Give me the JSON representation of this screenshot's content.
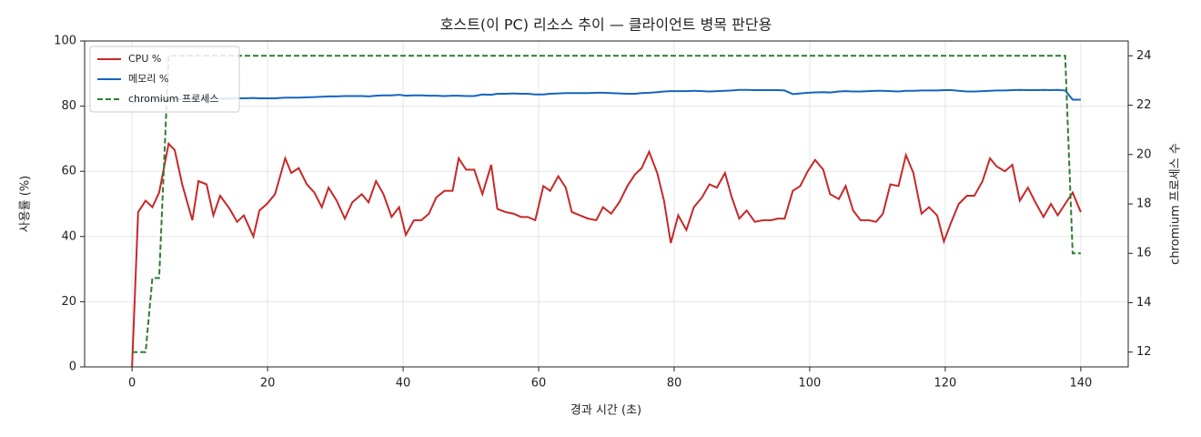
{
  "chart_data": {
    "type": "line",
    "title": "호스트(이 PC) 리소스 추이 — 클라이언트 병목 판단용",
    "x_label": "경과 시간 (초)",
    "y_label": "사용률 (%)",
    "y2_label": "chromium 프로세스 수",
    "x": [
      0,
      0.9,
      2,
      3,
      4,
      5.4,
      6.3,
      7.4,
      8.9,
      9.8,
      11,
      12,
      13,
      14.4,
      15.5,
      16.5,
      17.9,
      18.8,
      19.9,
      21.1,
      22.6,
      23.5,
      24.6,
      25.8,
      26.9,
      28,
      29,
      30.2,
      31.4,
      32.5,
      33.9,
      34.9,
      36,
      37.1,
      38.3,
      39.4,
      40.4,
      41.6,
      42.7,
      43.8,
      44.9,
      46.1,
      47.3,
      48.2,
      49.3,
      50.5,
      51.7,
      53,
      53.9,
      55.1,
      56.3,
      57.4,
      58.4,
      59.5,
      60.7,
      61.7,
      62.9,
      64,
      64.9,
      66.1,
      67.3,
      68.5,
      69.5,
      70.7,
      71.9,
      73.1,
      74.2,
      75.2,
      76.3,
      77.5,
      78.5,
      79.5,
      80.6,
      81.8,
      82.9,
      84.1,
      85.2,
      86.3,
      87.5,
      88.5,
      89.6,
      90.7,
      91.9,
      93.1,
      94.3,
      95.3,
      96.3,
      97.5,
      98.6,
      99.7,
      100.8,
      102,
      103,
      104.3,
      105.3,
      106.4,
      107.5,
      108.7,
      109.8,
      110.8,
      111.9,
      113.1,
      114.2,
      115.3,
      116.5,
      117.6,
      118.8,
      119.8,
      120.9,
      122,
      123.2,
      124.3,
      125.5,
      126.6,
      127.6,
      128.8,
      129.9,
      131,
      132.2,
      133.3,
      134.5,
      135.6,
      136.6,
      137.7,
      138.8,
      140
    ],
    "series": [
      {
        "name": "CPU %",
        "color": "#c62828",
        "linestyle": "solid",
        "axis": "y",
        "values": [
          0,
          47.5,
          51,
          49,
          53.5,
          68.5,
          66.5,
          56,
          45,
          57,
          56,
          46.5,
          52.5,
          48.5,
          44.5,
          46.5,
          40,
          48,
          50,
          53,
          64,
          59.5,
          61,
          56,
          53.5,
          49,
          55,
          51,
          45.5,
          50.5,
          53,
          50.5,
          57,
          53,
          46,
          49,
          40.5,
          45,
          45,
          47,
          52,
          54,
          54,
          64,
          60.5,
          60.5,
          53,
          62,
          48.5,
          47.5,
          47,
          46,
          46,
          45,
          55.5,
          54,
          58.5,
          55,
          47.5,
          46.5,
          45.5,
          45,
          49,
          47,
          50.5,
          55.5,
          59,
          61,
          66,
          59.5,
          51,
          38,
          46.5,
          42,
          49,
          52,
          56,
          55,
          59.5,
          52,
          45.5,
          48,
          44.5,
          45,
          45,
          45.5,
          45.5,
          54,
          55.5,
          60,
          63.5,
          60.5,
          53,
          51.5,
          55.5,
          48,
          45,
          45,
          44.5,
          47,
          56,
          55.5,
          65,
          59.5,
          47,
          49,
          46.5,
          38.5,
          44.5,
          50,
          52.5,
          52.5,
          57,
          64,
          61.5,
          60,
          62,
          51,
          55,
          50.5,
          46,
          50,
          46.5,
          50,
          53.5,
          47.5
        ]
      },
      {
        "name": "메모리 %",
        "color": "#1565c0",
        "linestyle": "solid",
        "axis": "y",
        "values": [
          81,
          81.5,
          81.8,
          82,
          82,
          82.1,
          82.2,
          82.2,
          82.3,
          82.3,
          82.3,
          82.4,
          82.3,
          82.3,
          82.4,
          82.4,
          82.5,
          82.4,
          82.4,
          82.4,
          82.6,
          82.6,
          82.6,
          82.7,
          82.8,
          82.9,
          83,
          83,
          83.1,
          83.1,
          83.1,
          83,
          83.2,
          83.3,
          83.3,
          83.5,
          83.2,
          83.3,
          83.3,
          83.2,
          83.2,
          83.1,
          83.2,
          83.2,
          83.1,
          83.1,
          83.6,
          83.5,
          83.8,
          83.8,
          83.9,
          83.8,
          83.8,
          83.6,
          83.6,
          83.8,
          83.9,
          84,
          84,
          84,
          84,
          84.1,
          84.1,
          84,
          83.9,
          83.8,
          83.8,
          84,
          84.1,
          84.3,
          84.5,
          84.6,
          84.6,
          84.6,
          84.7,
          84.6,
          84.5,
          84.6,
          84.7,
          84.8,
          85,
          85,
          84.9,
          84.9,
          84.9,
          84.9,
          84.8,
          83.7,
          83.9,
          84.1,
          84.2,
          84.3,
          84.2,
          84.5,
          84.6,
          84.5,
          84.5,
          84.6,
          84.7,
          84.7,
          84.6,
          84.5,
          84.7,
          84.7,
          84.8,
          84.8,
          84.8,
          84.9,
          84.9,
          84.7,
          84.5,
          84.5,
          84.6,
          84.7,
          84.8,
          84.8,
          84.9,
          85,
          84.9,
          84.9,
          85,
          84.9,
          85,
          84.8,
          82,
          82
        ]
      },
      {
        "name": "chromium 프로세스",
        "color": "#2e7d32",
        "linestyle": "dashed",
        "axis": "y2",
        "values": [
          12,
          12,
          12,
          15,
          15,
          24,
          24,
          24,
          24,
          24,
          24,
          24,
          24,
          24,
          24,
          24,
          24,
          24,
          24,
          24,
          24,
          24,
          24,
          24,
          24,
          24,
          24,
          24,
          24,
          24,
          24,
          24,
          24,
          24,
          24,
          24,
          24,
          24,
          24,
          24,
          24,
          24,
          24,
          24,
          24,
          24,
          24,
          24,
          24,
          24,
          24,
          24,
          24,
          24,
          24,
          24,
          24,
          24,
          24,
          24,
          24,
          24,
          24,
          24,
          24,
          24,
          24,
          24,
          24,
          24,
          24,
          24,
          24,
          24,
          24,
          24,
          24,
          24,
          24,
          24,
          24,
          24,
          24,
          24,
          24,
          24,
          24,
          24,
          24,
          24,
          24,
          24,
          24,
          24,
          24,
          24,
          24,
          24,
          24,
          24,
          24,
          24,
          24,
          24,
          24,
          24,
          24,
          24,
          24,
          24,
          24,
          24,
          24,
          24,
          24,
          24,
          24,
          24,
          24,
          24,
          24,
          24,
          24,
          24,
          16,
          16
        ]
      }
    ],
    "xlim": [
      -7,
      147
    ],
    "xticks": [
      0,
      20,
      40,
      60,
      80,
      100,
      120,
      140
    ],
    "ylim": [
      0,
      100
    ],
    "yticks": [
      0,
      20,
      40,
      60,
      80,
      100
    ],
    "y2lim": [
      11.4,
      24.6
    ],
    "y2ticks": [
      12,
      14,
      16,
      18,
      20,
      22,
      24
    ],
    "grid": true,
    "legend": "upper left"
  }
}
